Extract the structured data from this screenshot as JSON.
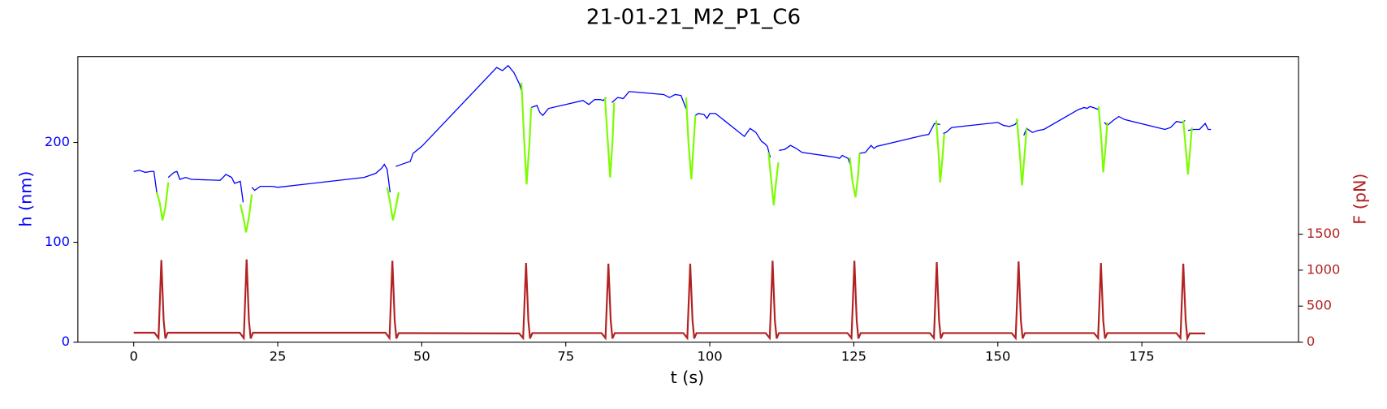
{
  "chart_data": {
    "type": "line",
    "title": "21-01-21_M2_P1_C6",
    "xlabel": "t (s)",
    "ylabel": "h (nm)",
    "y2label": "F (pN)",
    "xlim": [
      -9.7,
      202.2
    ],
    "xticks": [
      0,
      25,
      50,
      75,
      100,
      125,
      150,
      175
    ],
    "ylim": [
      0,
      286
    ],
    "yticks": [
      0,
      100,
      200
    ],
    "ycolor": "#0000ff",
    "y2lim": [
      0,
      3968
    ],
    "y2ticks": [
      0,
      500,
      1000,
      1500
    ],
    "y2color": "#b22222",
    "series": [
      {
        "color": "#0000ff",
        "x": [
          0,
          1,
          2,
          3,
          3.5,
          4,
          null,
          6,
          7,
          7.5,
          8,
          9,
          10,
          15,
          16,
          17,
          17.5,
          18.5,
          19,
          null,
          20.5,
          21,
          22,
          24,
          25,
          40,
          42,
          43,
          43.5,
          44,
          44.5,
          null,
          45.5,
          46,
          47,
          48,
          48.5,
          50,
          63,
          64,
          65,
          66,
          67,
          67.5,
          null,
          69,
          70,
          70.5,
          71,
          72,
          78,
          79,
          80,
          81,
          81.5,
          82,
          null,
          83,
          84,
          85,
          86,
          92,
          93,
          94,
          95,
          96,
          null,
          97.5,
          98,
          99,
          99.5,
          100,
          101,
          106,
          107,
          108,
          109,
          109.5,
          110,
          110.5,
          null,
          112,
          113,
          114,
          115,
          116,
          122,
          122.5,
          123,
          124,
          124.5,
          null,
          126,
          127,
          128,
          128.5,
          129,
          137,
          138,
          139,
          140,
          null,
          140.5,
          141,
          142,
          150,
          151,
          152,
          153,
          153.5,
          null,
          154.5,
          155,
          156,
          157,
          158,
          164,
          165,
          165.5,
          166,
          167,
          167.5,
          null,
          168.5,
          169,
          170,
          171,
          172,
          179,
          180,
          181,
          182,
          182.5,
          null,
          183,
          184,
          185,
          186,
          186.5,
          187
        ],
        "values": [
          171,
          172,
          170,
          171,
          171,
          150,
          null,
          165,
          170,
          171,
          163,
          165,
          163,
          162,
          168,
          165,
          159,
          161,
          140,
          null,
          155,
          152,
          156,
          156,
          155,
          165,
          169,
          174,
          178,
          173,
          150,
          null,
          176,
          177,
          179,
          181,
          189,
          196,
          275,
          272,
          277,
          270,
          258,
          248,
          null,
          235,
          237,
          230,
          227,
          234,
          242,
          238,
          243,
          243,
          242,
          245,
          null,
          240,
          245,
          244,
          251,
          248,
          245,
          248,
          247,
          232,
          null,
          227,
          229,
          228,
          224,
          229,
          229,
          206,
          214,
          210,
          201,
          199,
          196,
          185,
          null,
          192,
          193,
          197,
          194,
          190,
          185,
          184,
          187,
          184,
          176,
          null,
          189,
          190,
          197,
          194,
          196,
          207,
          208,
          219,
          218,
          null,
          209,
          210,
          215,
          220,
          217,
          216,
          218,
          222,
          null,
          207,
          214,
          210,
          212,
          213,
          233,
          235,
          234,
          236,
          234,
          233,
          null,
          220,
          217,
          222,
          226,
          223,
          213,
          215,
          221,
          220,
          222,
          null,
          212,
          213,
          213,
          219,
          213,
          213
        ]
      },
      {
        "color": "#7cfc00",
        "x": [
          4,
          4.5,
          5,
          5.5,
          6,
          null,
          18.5,
          19,
          19.5,
          20,
          20.5,
          null,
          44,
          44.5,
          45,
          45.5,
          46,
          null,
          67.3,
          67.8,
          68.2,
          68.7,
          69,
          null,
          81.8,
          82.3,
          82.7,
          83.1,
          83.4,
          null,
          95.9,
          96.3,
          96.8,
          97.2,
          97.5,
          null,
          110.2,
          110.7,
          111.1,
          111.5,
          111.9,
          null,
          124.3,
          124.8,
          125.3,
          125.8,
          126,
          null,
          139.3,
          139.7,
          140,
          140.4,
          140.7,
          null,
          153.3,
          153.8,
          154.2,
          154.6,
          155,
          null,
          167.5,
          168,
          168.3,
          168.7,
          169,
          null,
          182.2,
          182.6,
          183,
          183.4,
          183.7
        ],
        "values": [
          150,
          140,
          122,
          135,
          160,
          null,
          138,
          126,
          110,
          125,
          148,
          null,
          155,
          140,
          122,
          135,
          150,
          null,
          260,
          200,
          158,
          200,
          235,
          null,
          245,
          200,
          165,
          200,
          240,
          null,
          245,
          200,
          163,
          200,
          227,
          null,
          190,
          160,
          137,
          160,
          180,
          null,
          185,
          160,
          145,
          170,
          189,
          null,
          222,
          190,
          160,
          185,
          209,
          null,
          224,
          190,
          157,
          185,
          214,
          null,
          236,
          200,
          170,
          195,
          220,
          null,
          222,
          195,
          168,
          195,
          215
        ]
      },
      {
        "color": "#b22222",
        "axis": "y2",
        "x": [
          0,
          3.6,
          4.3,
          4.8,
          5.2,
          5.5,
          5.9,
          18.4,
          19.1,
          19.6,
          20.0,
          20.3,
          20.7,
          43.7,
          44.4,
          44.9,
          45.3,
          45.6,
          46.0,
          66.9,
          67.6,
          68.1,
          68.5,
          68.8,
          69.2,
          81.2,
          81.9,
          82.4,
          82.8,
          83.1,
          83.5,
          95.4,
          96.1,
          96.6,
          97.0,
          97.3,
          97.7,
          109.7,
          110.4,
          110.9,
          111.3,
          111.6,
          112.0,
          123.9,
          124.6,
          125.1,
          125.5,
          125.8,
          126.2,
          138.2,
          138.9,
          139.4,
          139.8,
          140.1,
          140.5,
          152.4,
          153.1,
          153.6,
          154.0,
          154.3,
          154.7,
          166.7,
          167.4,
          167.9,
          168.3,
          168.6,
          169.0,
          181.0,
          181.7,
          182.2,
          182.6,
          182.9,
          183.3,
          186
        ],
        "values": [
          130,
          130,
          55,
          1140,
          300,
          50,
          130,
          130,
          55,
          1150,
          300,
          50,
          130,
          130,
          55,
          1130,
          300,
          50,
          125,
          120,
          55,
          1100,
          300,
          50,
          125,
          125,
          55,
          1090,
          300,
          50,
          125,
          125,
          55,
          1090,
          300,
          50,
          125,
          125,
          55,
          1130,
          300,
          50,
          125,
          125,
          55,
          1130,
          300,
          50,
          125,
          125,
          55,
          1110,
          300,
          50,
          125,
          125,
          55,
          1120,
          300,
          50,
          125,
          125,
          55,
          1100,
          300,
          50,
          125,
          125,
          55,
          1090,
          300,
          50,
          120,
          120
        ]
      }
    ]
  }
}
